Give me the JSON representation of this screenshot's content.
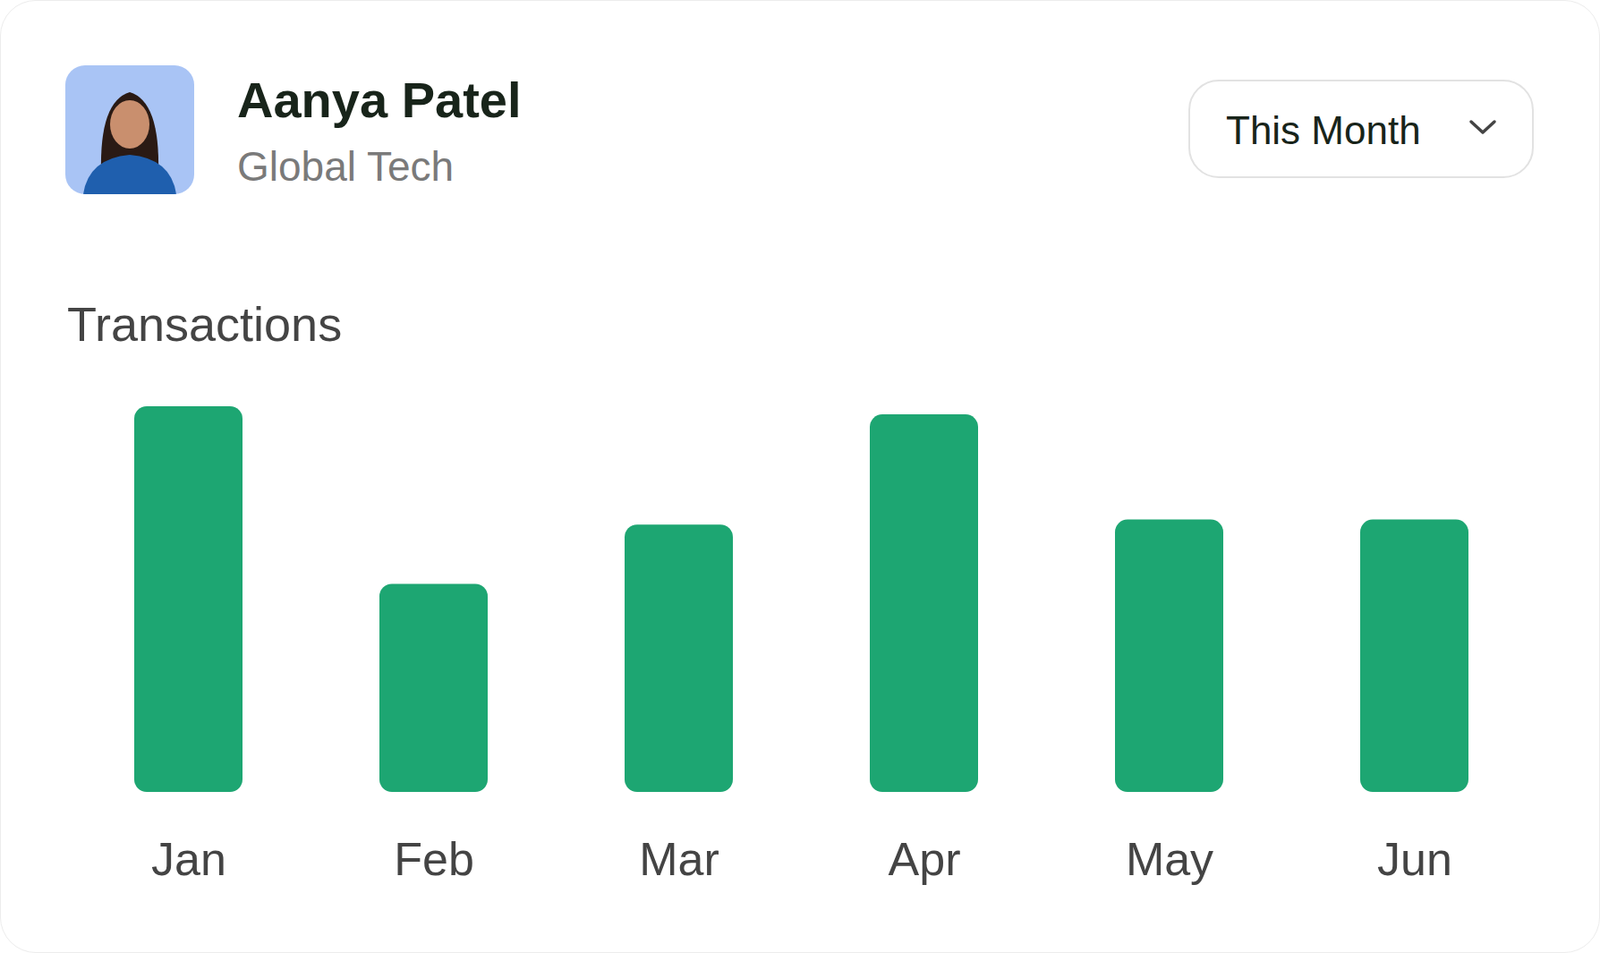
{
  "header": {
    "name": "Aanya Patel",
    "company": "Global Tech",
    "period_selector": "This Month"
  },
  "chart_data": {
    "type": "bar",
    "title": "Transactions",
    "categories": [
      "Jan",
      "Feb",
      "Mar",
      "Apr",
      "May",
      "Jun"
    ],
    "values": [
      378,
      204,
      262,
      370,
      267,
      267
    ],
    "color": "#1da672",
    "ylim": [
      0,
      378
    ],
    "tick_labels": "x"
  }
}
